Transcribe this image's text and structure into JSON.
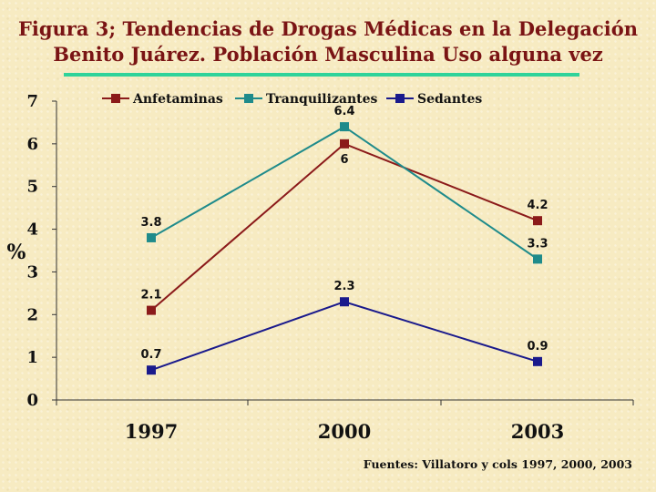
{
  "title": {
    "line1": "Figura 3; Tendencias de Drogas Médicas en  la Delegación",
    "line2": "Benito Juárez. Población Masculina Uso alguna vez"
  },
  "source": "Fuentes: Villatoro y cols 1997, 2000, 2003",
  "colors": {
    "title": "#7a1414",
    "rule": "#2fd39a",
    "Anfetaminas": "#8b1a1a",
    "Tranquilizantes": "#1f8b8b",
    "Sedantes": "#1a1a8c"
  },
  "chart_data": {
    "type": "line",
    "x": [
      "1997",
      "2000",
      "2003"
    ],
    "ylabel": "%",
    "ylim": [
      0,
      7
    ],
    "yticks": [
      "0",
      "1",
      "2",
      "3",
      "4",
      "5",
      "6",
      "7"
    ],
    "legend_position": "top",
    "grid": false,
    "series": [
      {
        "name": "Anfetaminas",
        "values": [
          2.1,
          6,
          4.2
        ],
        "labels": [
          "2.1",
          "6",
          "4.2"
        ],
        "label_pos": [
          "above",
          "below",
          "above"
        ]
      },
      {
        "name": "Tranquilizantes",
        "values": [
          3.8,
          6.4,
          3.3
        ],
        "labels": [
          "3.8",
          "6.4",
          "3.3"
        ],
        "label_pos": [
          "above",
          "above",
          "above"
        ]
      },
      {
        "name": "Sedantes",
        "values": [
          0.7,
          2.3,
          0.9
        ],
        "labels": [
          "0.7",
          "2.3",
          "0.9"
        ],
        "label_pos": [
          "above",
          "above",
          "above"
        ]
      }
    ]
  }
}
